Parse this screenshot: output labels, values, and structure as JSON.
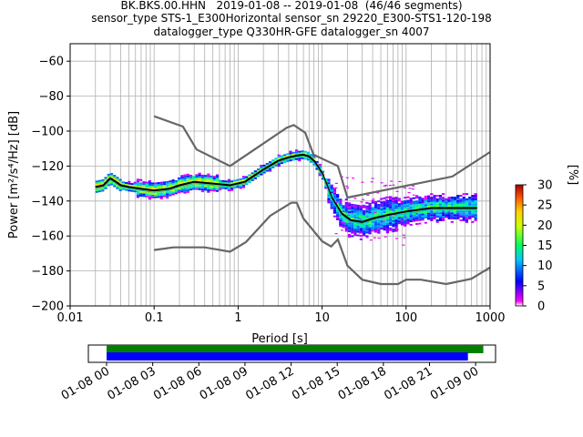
{
  "chart_data": [
    {
      "type": "heatmap",
      "title_lines": [
        "BK.BKS.00.HHN   2019-01-08 -- 2019-01-08  (46/46 segments)",
        "sensor_type STS-1_E300Horizontal sensor_sn 29220_E300-STS1-120-198",
        "datalogger_type Q330HR-GFE datalogger_sn 4007"
      ],
      "xlabel": "Period [s]",
      "ylabel": "Power [m²/s⁴/Hz] [dB]",
      "xscale": "log",
      "xlim": [
        0.01,
        1000
      ],
      "ylim": [
        -200,
        -50
      ],
      "x_ticks": [
        "0.01",
        "0.1",
        "1",
        "10",
        "100",
        "1000"
      ],
      "y_ticks": [
        "−200",
        "−180",
        "−160",
        "−140",
        "−120",
        "−100",
        "−80",
        "−60"
      ],
      "grid": true,
      "colorbar": {
        "label": "[%]",
        "range": [
          0,
          30
        ],
        "ticks": [
          "0",
          "5",
          "10",
          "15",
          "20",
          "25",
          "30"
        ]
      },
      "colors": {
        "noise_model": "#666666",
        "mean_curve": "#000000",
        "mode_curve": "#00c0c0"
      },
      "series": [
        {
          "role": "noise-model-high",
          "x": [
            0.1,
            0.22,
            0.32,
            0.8,
            3.8,
            4.6,
            6.3,
            7.9,
            15.4,
            20,
            354.8,
            1000
          ],
          "y": [
            -91.5,
            -97.4,
            -110.5,
            -120,
            -98,
            -96.5,
            -101,
            -113.5,
            -120,
            -138,
            -126,
            -112
          ]
        },
        {
          "role": "noise-model-low",
          "x": [
            0.1,
            0.17,
            0.4,
            0.8,
            1.24,
            2.4,
            4.3,
            5,
            6,
            10,
            12.8,
            15.4,
            20,
            30,
            50,
            80,
            100,
            150,
            300,
            600,
            1000
          ],
          "y": [
            -168,
            -166.5,
            -166.5,
            -169,
            -163.5,
            -148.5,
            -141,
            -141,
            -150,
            -163,
            -166,
            -162,
            -177,
            -185,
            -187.5,
            -187.5,
            -185,
            -185,
            -187.5,
            -184.5,
            -178
          ]
        },
        {
          "role": "mean-psd",
          "x": [
            0.02,
            0.025,
            0.03,
            0.035,
            0.04,
            0.05,
            0.07,
            0.1,
            0.15,
            0.2,
            0.3,
            0.5,
            0.8,
            1.2,
            2,
            3,
            4,
            5,
            6,
            7,
            8,
            10,
            13,
            17,
            22,
            30,
            40,
            60,
            100,
            200,
            400,
            700
          ],
          "y": [
            -132,
            -131,
            -127,
            -129,
            -131,
            -132,
            -133,
            -134,
            -133,
            -131,
            -129,
            -130,
            -131,
            -129,
            -122,
            -117,
            -115,
            -114,
            -113.5,
            -114.5,
            -117,
            -124,
            -138,
            -147,
            -151,
            -152,
            -150,
            -148,
            -146,
            -144,
            -144,
            -144
          ]
        }
      ]
    },
    {
      "type": "bar",
      "role": "data-availability",
      "x_ticks": [
        "01-08 00",
        "01-08 03",
        "01-08 06",
        "01-08 09",
        "01-08 12",
        "01-08 15",
        "01-08 18",
        "01-08 21",
        "01-09 00"
      ],
      "bars": [
        {
          "name": "green-coverage",
          "start_hours": 0,
          "end_hours": 24.5,
          "color": "#008000"
        },
        {
          "name": "blue-coverage",
          "start_hours": 0,
          "end_hours": 23.5,
          "color": "#0000ff"
        }
      ]
    }
  ]
}
